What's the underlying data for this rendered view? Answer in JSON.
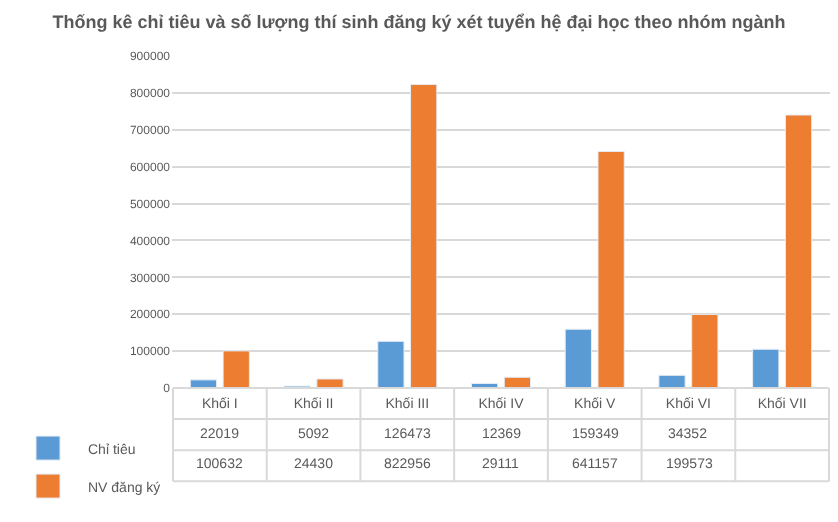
{
  "chart_data": {
    "type": "bar",
    "title": "Thống kê chỉ tiêu và số lượng thí sinh đăng ký xét tuyển hệ đại học theo nhóm ngành",
    "categories": [
      "Khối I",
      "Khối II",
      "Khối III",
      "Khối IV",
      "Khối V",
      "Khối VI",
      "Khối VII"
    ],
    "series": [
      {
        "name": "Chỉ tiêu",
        "color": "#5b9bd5",
        "values": [
          22019,
          5092,
          126473,
          12369,
          159349,
          34352,
          105000
        ],
        "value_labels": [
          "22019",
          "5092",
          "126473",
          "12369",
          "159349",
          "34352",
          null
        ]
      },
      {
        "name": "NV đăng ký",
        "color": "#ed7d31",
        "values": [
          100632,
          24430,
          822956,
          29111,
          641157,
          199573,
          740000
        ],
        "value_labels": [
          "100632",
          "24430",
          "822956",
          "29111",
          "641157",
          "199573",
          null
        ]
      }
    ],
    "ylim": [
      0,
      900000
    ],
    "yticks": [
      0,
      100000,
      200000,
      300000,
      400000,
      500000,
      600000,
      700000,
      800000,
      900000
    ],
    "grid": "y",
    "legend": "bottom left"
  }
}
